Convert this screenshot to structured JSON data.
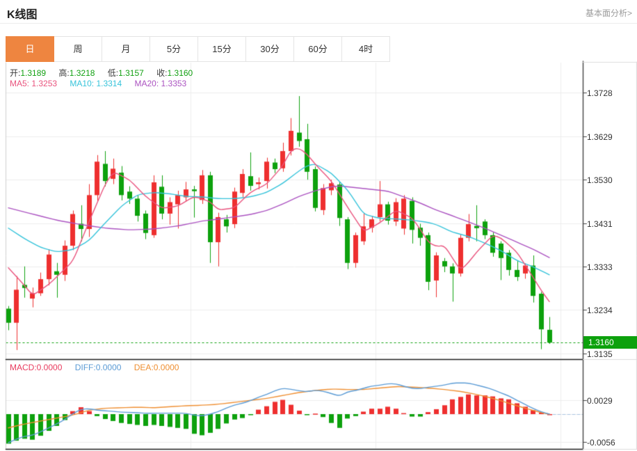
{
  "header": {
    "title": "K线图",
    "link": "基本面分析>"
  },
  "tabs": {
    "items": [
      "日",
      "周",
      "月",
      "5分",
      "15分",
      "30分",
      "60分",
      "4时"
    ],
    "active_index": 0,
    "active_color": "#ee8540"
  },
  "legend": {
    "ohlc": [
      {
        "label": "开:",
        "value": "1.3189"
      },
      {
        "label": "高:",
        "value": "1.3218"
      },
      {
        "label": "低:",
        "value": "1.3157"
      },
      {
        "label": "收:",
        "value": "1.3160"
      }
    ],
    "ohlc_value_color": "#12a112",
    "ma": [
      {
        "label": "MA5:",
        "value": "1.3253",
        "color": "#e9537d"
      },
      {
        "label": "MA10:",
        "value": "1.3314",
        "color": "#35c3da"
      },
      {
        "label": "MA20:",
        "value": "1.3353",
        "color": "#ab53c1"
      }
    ],
    "macd": [
      {
        "label": "MACD:",
        "value": "0.0000",
        "color": "#e83b5e"
      },
      {
        "label": "DIFF:",
        "value": "0.0000",
        "color": "#5b9bd5"
      },
      {
        "label": "DEA:",
        "value": "0.0000",
        "color": "#ef8f32"
      }
    ]
  },
  "chart_data": {
    "type": "candlestick+macd",
    "price_axis": {
      "ticks": [
        "1.3728",
        "1.3629",
        "1.3530",
        "1.3431",
        "1.3333",
        "1.3234",
        "1.3135"
      ],
      "tick_values": [
        1.3728,
        1.3629,
        1.353,
        1.3431,
        1.3333,
        1.3234,
        1.3135
      ],
      "current": 1.316,
      "current_label": "1.3160"
    },
    "macd_axis": {
      "ticks": [
        "0.0029",
        "-0.0056"
      ],
      "tick_values": [
        0.0029,
        -0.0056
      ]
    },
    "colors": {
      "up": "#ee2f2f",
      "down": "#0da10d",
      "ma5": "#e9537d",
      "ma10": "#35c3da",
      "ma20": "#ab53c1",
      "diff": "#5b9bd5",
      "dea": "#ef8f32",
      "grid": "#ededed",
      "frame_dark": "#1a1a1a",
      "frame_light": "#cfcfcf",
      "axis_line": "#444444",
      "current_line": "#0da10d",
      "zero_ext": "#a8c4e0",
      "badge_bg": "#0da10d"
    },
    "candles": [
      [
        1.3237,
        1.3243,
        1.3188,
        1.3205
      ],
      [
        1.3205,
        1.3311,
        1.3143,
        1.328
      ],
      [
        1.3291,
        1.3333,
        1.3262,
        1.3284
      ],
      [
        1.326,
        1.3285,
        1.324,
        1.3272
      ],
      [
        1.3272,
        1.3319,
        1.3266,
        1.3304
      ],
      [
        1.3304,
        1.3372,
        1.329,
        1.336
      ],
      [
        1.3322,
        1.3341,
        1.3262,
        1.3314
      ],
      [
        1.3314,
        1.3392,
        1.33,
        1.338
      ],
      [
        1.338,
        1.346,
        1.337,
        1.3452
      ],
      [
        1.343,
        1.3472,
        1.339,
        1.3418
      ],
      [
        1.3418,
        1.352,
        1.34,
        1.3495
      ],
      [
        1.3495,
        1.3586,
        1.348,
        1.3571
      ],
      [
        1.3566,
        1.3595,
        1.3515,
        1.3527
      ],
      [
        1.3532,
        1.3578,
        1.352,
        1.3555
      ],
      [
        1.3546,
        1.3561,
        1.3483,
        1.3495
      ],
      [
        1.3503,
        1.3515,
        1.3475,
        1.3487
      ],
      [
        1.3487,
        1.3495,
        1.3435,
        1.3448
      ],
      [
        1.3453,
        1.346,
        1.3395,
        1.3409
      ],
      [
        1.3404,
        1.354,
        1.3398,
        1.3524
      ],
      [
        1.3514,
        1.354,
        1.344,
        1.3453
      ],
      [
        1.3453,
        1.349,
        1.3428,
        1.3479
      ],
      [
        1.3474,
        1.3505,
        1.3419,
        1.3495
      ],
      [
        1.349,
        1.3525,
        1.348,
        1.3508
      ],
      [
        1.3508,
        1.3516,
        1.3444,
        1.3504
      ],
      [
        1.3484,
        1.3552,
        1.3475,
        1.354
      ],
      [
        1.354,
        1.3548,
        1.3341,
        1.3388
      ],
      [
        1.3388,
        1.3455,
        1.3333,
        1.3445
      ],
      [
        1.344,
        1.345,
        1.341,
        1.3424
      ],
      [
        1.3429,
        1.3512,
        1.342,
        1.3503
      ],
      [
        1.35,
        1.3554,
        1.349,
        1.3543
      ],
      [
        1.3538,
        1.3592,
        1.3505,
        1.3516
      ],
      [
        1.352,
        1.3535,
        1.3508,
        1.3524
      ],
      [
        1.3527,
        1.358,
        1.351,
        1.3571
      ],
      [
        1.3569,
        1.3578,
        1.3545,
        1.3554
      ],
      [
        1.3556,
        1.3614,
        1.3548,
        1.3595
      ],
      [
        1.3595,
        1.367,
        1.3585,
        1.3641
      ],
      [
        1.3637,
        1.372,
        1.3605,
        1.3618
      ],
      [
        1.3622,
        1.3657,
        1.353,
        1.3548
      ],
      [
        1.3554,
        1.356,
        1.3458,
        1.3466
      ],
      [
        1.3461,
        1.352,
        1.345,
        1.3511
      ],
      [
        1.3506,
        1.353,
        1.3495,
        1.3522
      ],
      [
        1.3519,
        1.3525,
        1.3425,
        1.3443
      ],
      [
        1.344,
        1.3445,
        1.3327,
        1.3341
      ],
      [
        1.3341,
        1.341,
        1.333,
        1.3404
      ],
      [
        1.339,
        1.3453,
        1.3382,
        1.3424
      ],
      [
        1.3421,
        1.3448,
        1.341,
        1.344
      ],
      [
        1.3445,
        1.3527,
        1.3435,
        1.3474
      ],
      [
        1.3474,
        1.348,
        1.3428,
        1.3437
      ],
      [
        1.3435,
        1.3488,
        1.3425,
        1.3479
      ],
      [
        1.3419,
        1.3495,
        1.3405,
        1.3487
      ],
      [
        1.3482,
        1.349,
        1.3385,
        1.3416
      ],
      [
        1.3421,
        1.343,
        1.338,
        1.3398
      ],
      [
        1.3404,
        1.341,
        1.3279,
        1.3298
      ],
      [
        1.3301,
        1.3365,
        1.3263,
        1.3358
      ],
      [
        1.3345,
        1.3352,
        1.332,
        1.3333
      ],
      [
        1.3333,
        1.334,
        1.3253,
        1.3317
      ],
      [
        1.3317,
        1.3406,
        1.331,
        1.3398
      ],
      [
        1.3398,
        1.3452,
        1.339,
        1.3429
      ],
      [
        1.3425,
        1.3472,
        1.339,
        1.342
      ],
      [
        1.3435,
        1.344,
        1.3395,
        1.3404
      ],
      [
        1.3404,
        1.341,
        1.3355,
        1.3364
      ],
      [
        1.3385,
        1.339,
        1.3302,
        1.3352
      ],
      [
        1.3364,
        1.337,
        1.3312,
        1.3325
      ],
      [
        1.3325,
        1.3346,
        1.33,
        1.3309
      ],
      [
        1.3317,
        1.334,
        1.3305,
        1.3335
      ],
      [
        1.3335,
        1.3358,
        1.3251,
        1.3266
      ],
      [
        1.3271,
        1.3275,
        1.3145,
        1.319
      ],
      [
        1.3189,
        1.3218,
        1.3157,
        1.316
      ]
    ],
    "ma5_points": [
      [
        0,
        1.333
      ],
      [
        2,
        1.329
      ],
      [
        3,
        1.3267
      ],
      [
        5,
        1.3292
      ],
      [
        8,
        1.3345
      ],
      [
        10,
        1.3435
      ],
      [
        12,
        1.352
      ],
      [
        13,
        1.3548
      ],
      [
        15,
        1.353
      ],
      [
        17,
        1.3492
      ],
      [
        19,
        1.3465
      ],
      [
        21,
        1.347
      ],
      [
        23,
        1.3492
      ],
      [
        25,
        1.348
      ],
      [
        26,
        1.3461
      ],
      [
        28,
        1.3466
      ],
      [
        30,
        1.3502
      ],
      [
        32,
        1.352
      ],
      [
        34,
        1.3562
      ],
      [
        35,
        1.3598
      ],
      [
        36,
        1.3602
      ],
      [
        37,
        1.3588
      ],
      [
        38,
        1.3565
      ],
      [
        40,
        1.3527
      ],
      [
        42,
        1.3468
      ],
      [
        44,
        1.3412
      ],
      [
        46,
        1.3432
      ],
      [
        48,
        1.3461
      ],
      [
        50,
        1.3443
      ],
      [
        51,
        1.3418
      ],
      [
        52,
        1.3388
      ],
      [
        53,
        1.3378
      ],
      [
        54,
        1.3381
      ],
      [
        55,
        1.3352
      ],
      [
        56,
        1.3324
      ],
      [
        57,
        1.3342
      ],
      [
        58,
        1.3366
      ],
      [
        60,
        1.3404
      ],
      [
        61,
        1.3398
      ],
      [
        63,
        1.3365
      ],
      [
        65,
        1.3308
      ],
      [
        66,
        1.3278
      ],
      [
        67,
        1.3253
      ]
    ],
    "ma10_points": [
      [
        0,
        1.342
      ],
      [
        2,
        1.3396
      ],
      [
        4,
        1.3376
      ],
      [
        6,
        1.3366
      ],
      [
        8,
        1.3371
      ],
      [
        10,
        1.3392
      ],
      [
        12,
        1.3432
      ],
      [
        14,
        1.347
      ],
      [
        16,
        1.3496
      ],
      [
        18,
        1.3501
      ],
      [
        20,
        1.3498
      ],
      [
        22,
        1.3492
      ],
      [
        24,
        1.3491
      ],
      [
        26,
        1.3487
      ],
      [
        28,
        1.3487
      ],
      [
        30,
        1.3491
      ],
      [
        32,
        1.3501
      ],
      [
        34,
        1.3522
      ],
      [
        36,
        1.355
      ],
      [
        37,
        1.3562
      ],
      [
        38,
        1.3566
      ],
      [
        40,
        1.3545
      ],
      [
        42,
        1.3507
      ],
      [
        44,
        1.3452
      ],
      [
        46,
        1.3442
      ],
      [
        48,
        1.3441
      ],
      [
        50,
        1.3438
      ],
      [
        52,
        1.3433
      ],
      [
        53,
        1.3428
      ],
      [
        55,
        1.3411
      ],
      [
        57,
        1.3401
      ],
      [
        59,
        1.3386
      ],
      [
        61,
        1.3369
      ],
      [
        63,
        1.3346
      ],
      [
        65,
        1.3332
      ],
      [
        67,
        1.3314
      ]
    ],
    "ma20_points": [
      [
        0,
        1.3466
      ],
      [
        3,
        1.3452
      ],
      [
        6,
        1.3438
      ],
      [
        9,
        1.3428
      ],
      [
        12,
        1.342
      ],
      [
        15,
        1.3416
      ],
      [
        18,
        1.3418
      ],
      [
        21,
        1.3425
      ],
      [
        24,
        1.3436
      ],
      [
        27,
        1.3443
      ],
      [
        30,
        1.3451
      ],
      [
        32,
        1.346
      ],
      [
        34,
        1.3475
      ],
      [
        36,
        1.3492
      ],
      [
        38,
        1.3505
      ],
      [
        40,
        1.3514
      ],
      [
        41,
        1.3516
      ],
      [
        43,
        1.3512
      ],
      [
        45,
        1.3508
      ],
      [
        47,
        1.3504
      ],
      [
        49,
        1.3491
      ],
      [
        51,
        1.3477
      ],
      [
        53,
        1.3461
      ],
      [
        55,
        1.3448
      ],
      [
        57,
        1.3434
      ],
      [
        59,
        1.342
      ],
      [
        61,
        1.3404
      ],
      [
        63,
        1.3388
      ],
      [
        65,
        1.3372
      ],
      [
        67,
        1.3353
      ]
    ],
    "macd_hist": [
      -0.006,
      -0.0054,
      -0.005,
      -0.0052,
      -0.0044,
      -0.0034,
      -0.0024,
      -0.0012,
      0.0006,
      0.0014,
      0.0006,
      -0.0004,
      -0.001,
      -0.0014,
      -0.0018,
      -0.002,
      -0.0022,
      -0.0024,
      -0.0022,
      -0.0024,
      -0.0026,
      -0.0028,
      -0.003,
      -0.004,
      -0.0043,
      -0.0038,
      -0.003,
      -0.0019,
      -0.0011,
      -0.0008,
      -0.0001,
      0.0009,
      0.0016,
      0.0025,
      0.0029,
      0.0019,
      0.0007,
      -0.0001,
      0.0001,
      -0.0006,
      -0.0018,
      -0.0028,
      -0.0009,
      -0.0004,
      0.0005,
      0.0011,
      0.0011,
      0.0015,
      0.0011,
      0.0002,
      -0.0005,
      -0.0005,
      0.0004,
      0.001,
      0.0018,
      0.003,
      0.0035,
      0.004,
      0.0038,
      0.0038,
      0.0036,
      0.0032,
      0.003,
      0.0022,
      0.0015,
      0.0008,
      0.0003,
      0.0
    ],
    "dea_points": [
      [
        0,
        -0.0028
      ],
      [
        2,
        -0.002
      ],
      [
        4,
        -0.0014
      ],
      [
        6,
        -0.0008
      ],
      [
        8,
        -0.0002
      ],
      [
        10,
        0.0008
      ],
      [
        12,
        0.0012
      ],
      [
        14,
        0.0013
      ],
      [
        16,
        0.0014
      ],
      [
        18,
        0.0013
      ],
      [
        20,
        0.0015
      ],
      [
        22,
        0.0017
      ],
      [
        24,
        0.0018
      ],
      [
        26,
        0.002
      ],
      [
        28,
        0.0024
      ],
      [
        30,
        0.0028
      ],
      [
        32,
        0.0032
      ],
      [
        34,
        0.0038
      ],
      [
        36,
        0.0044
      ],
      [
        38,
        0.0048
      ],
      [
        40,
        0.0051
      ],
      [
        42,
        0.005
      ],
      [
        44,
        0.005
      ],
      [
        46,
        0.0053
      ],
      [
        48,
        0.0056
      ],
      [
        50,
        0.0055
      ],
      [
        52,
        0.0053
      ],
      [
        54,
        0.005
      ],
      [
        56,
        0.0046
      ],
      [
        58,
        0.004
      ],
      [
        60,
        0.0032
      ],
      [
        62,
        0.0022
      ],
      [
        64,
        0.0012
      ],
      [
        66,
        0.0003
      ],
      [
        67,
        0.0
      ]
    ]
  }
}
